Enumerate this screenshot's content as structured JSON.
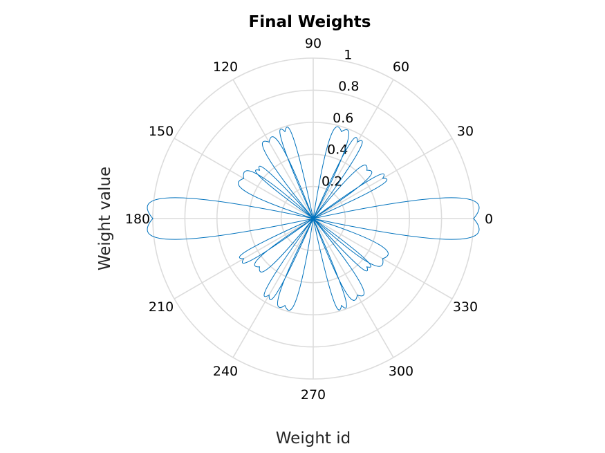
{
  "chart_data": {
    "type": "polar",
    "title": "Final Weights",
    "xlabel": "Weight id",
    "ylabel": "Weight value",
    "rlim": [
      0,
      1
    ],
    "r_ticks": [
      0.2,
      0.4,
      0.6,
      0.8,
      1
    ],
    "r_tick_labels": [
      "0.2",
      "0.4",
      "0.6",
      "0.8",
      "1"
    ],
    "theta_ticks": [
      0,
      30,
      60,
      90,
      120,
      150,
      180,
      210,
      240,
      270,
      300,
      330
    ],
    "theta_tick_labels": [
      "0",
      "30",
      "60",
      "90",
      "120",
      "150",
      "180",
      "210",
      "240",
      "270",
      "300",
      "330"
    ],
    "grid": true,
    "series": [
      {
        "color": "#0072bd",
        "theta_deg": [
          0,
          30,
          42,
          60,
          72,
          90,
          108,
          120,
          138,
          150,
          180,
          210,
          222,
          240,
          252,
          270,
          288,
          300,
          318,
          330
        ],
        "r": [
          1.0,
          0.5,
          0.45,
          0.55,
          0.57,
          0.0,
          0.57,
          0.55,
          0.45,
          0.5,
          1.0,
          0.5,
          0.45,
          0.55,
          0.57,
          0.0,
          0.57,
          0.55,
          0.45,
          0.5
        ],
        "note_shape": "petal lobes"
      }
    ]
  }
}
